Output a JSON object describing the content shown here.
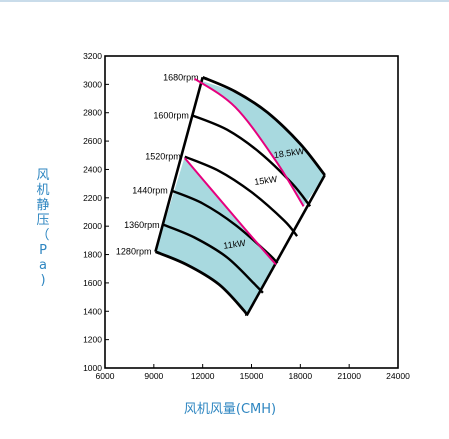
{
  "chart_data": {
    "type": "line",
    "xlabel": "风机风量(CMH)",
    "ylabel": "风机静压（Pa)",
    "xlim": [
      6000,
      24000
    ],
    "ylim": [
      1000,
      3200
    ],
    "xticks": [
      "6000",
      "9000",
      "12000",
      "15000",
      "18000",
      "21000",
      "24000"
    ],
    "yticks": [
      "1000",
      "1200",
      "1400",
      "1600",
      "1800",
      "2000",
      "2200",
      "2400",
      "2600",
      "2800",
      "3000",
      "3200"
    ],
    "grid": false,
    "series": [
      {
        "name": "1680rpm",
        "x": [
          12000,
          14000,
          16000,
          18000,
          19500
        ],
        "y": [
          3050,
          2950,
          2800,
          2580,
          2360
        ]
      },
      {
        "name": "1600rpm",
        "x": [
          11400,
          13500,
          15500,
          17500,
          18600
        ],
        "y": [
          2780,
          2680,
          2520,
          2300,
          2140
        ]
      },
      {
        "name": "1520rpm",
        "x": [
          10900,
          13000,
          15000,
          17000,
          17800
        ],
        "y": [
          2490,
          2390,
          2240,
          2040,
          1930
        ]
      },
      {
        "name": "1440rpm",
        "x": [
          10100,
          12000,
          14000,
          16000,
          16600
        ],
        "y": [
          2250,
          2160,
          2010,
          1810,
          1740
        ]
      },
      {
        "name": "1360rpm",
        "x": [
          9600,
          11500,
          13500,
          15200,
          15700
        ],
        "y": [
          2010,
          1920,
          1780,
          1590,
          1530
        ]
      },
      {
        "name": "1280rpm",
        "x": [
          9100,
          11000,
          13000,
          14500,
          14700
        ],
        "y": [
          1820,
          1730,
          1590,
          1410,
          1370
        ]
      }
    ],
    "power_lines": [
      {
        "label": "18.5kW",
        "x": [
          11500,
          14000,
          16500,
          18200
        ],
        "y": [
          3040,
          2840,
          2460,
          2140
        ]
      },
      {
        "label": "11kW",
        "x": [
          10900,
          12600,
          14600,
          16500
        ],
        "y": [
          2480,
          2250,
          1980,
          1730
        ]
      }
    ],
    "annotations": [
      "15kW"
    ],
    "colors": {
      "shade": "#a8d9df",
      "power_line": "#e6007e",
      "curve": "#000000",
      "axis_label": "#2e86c1"
    }
  }
}
